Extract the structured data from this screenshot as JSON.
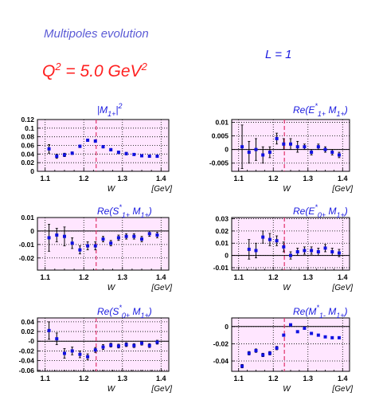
{
  "header": {
    "title": "Multipoles evolution",
    "q2_base": "Q",
    "q2_exp": "2",
    "q2_mid": " = 5.0 GeV",
    "q2_unit_exp": "2",
    "l_label": "L = 1"
  },
  "colors": {
    "title": "#5b5bd6",
    "q2": "#ff2020",
    "label": "#1a1ae0",
    "plot_bg": "#ffe6ff",
    "markers": "#1010e0",
    "dashed": "#e0306a"
  },
  "chart_data": [
    {
      "type": "scatter",
      "label": "|M_{1+}|^2",
      "xlabel": "W",
      "xunit": "[GeV]",
      "xlim": [
        1.08,
        1.42
      ],
      "ylim": [
        0,
        0.12
      ],
      "yticks": [
        "0",
        "0.02",
        "0.04",
        "0.06",
        "0.08",
        "0.1",
        "0.12"
      ],
      "yticks_val": [
        0,
        0.02,
        0.04,
        0.06,
        0.08,
        0.1,
        0.12
      ],
      "xticks": [
        "1.1",
        "1.2",
        "1.3",
        "1.4"
      ],
      "hline": null,
      "vline": 1.232,
      "x": [
        1.11,
        1.13,
        1.15,
        1.17,
        1.19,
        1.21,
        1.23,
        1.25,
        1.27,
        1.29,
        1.31,
        1.33,
        1.35,
        1.37,
        1.39
      ],
      "y": [
        0.052,
        0.035,
        0.038,
        0.042,
        0.058,
        0.072,
        0.07,
        0.057,
        0.05,
        0.044,
        0.041,
        0.039,
        0.036,
        0.035,
        0.035
      ],
      "err": [
        0.01,
        0.005,
        0.004,
        0.003,
        0.003,
        0.003,
        0.003,
        0.003,
        0.003,
        0.003,
        0.003,
        0.002,
        0.002,
        0.002,
        0.003
      ]
    },
    {
      "type": "scatter",
      "label": "Re(E^*_{1+} M_{1+})",
      "xlabel": "W",
      "xunit": "[GeV]",
      "xlim": [
        1.08,
        1.42
      ],
      "ylim": [
        -0.008,
        0.011
      ],
      "yticks": [
        "-0.005",
        "0",
        "0.005",
        "0.01"
      ],
      "yticks_val": [
        -0.005,
        0,
        0.005,
        0.01
      ],
      "xticks": [
        "1.1",
        "1.2",
        "1.3",
        "1.4"
      ],
      "hline": 0,
      "vline": 1.232,
      "x": [
        1.11,
        1.13,
        1.15,
        1.17,
        1.19,
        1.21,
        1.23,
        1.25,
        1.27,
        1.29,
        1.31,
        1.33,
        1.35,
        1.37,
        1.39
      ],
      "y": [
        0.001,
        -0.001,
        0,
        -0.002,
        -0.001,
        0.004,
        0.002,
        0.002,
        0.001,
        0.001,
        -0.001,
        0.001,
        0,
        -0.001,
        -0.002
      ],
      "err": [
        0.008,
        0.004,
        0.004,
        0.003,
        0.002,
        0.002,
        0.002,
        0.002,
        0.002,
        0.001,
        0.001,
        0.001,
        0.001,
        0.001,
        0.001
      ]
    },
    {
      "type": "scatter",
      "label": "Re(S^*_{1+} M_{1+})",
      "xlabel": "W",
      "xunit": "[GeV]",
      "xlim": [
        1.08,
        1.42
      ],
      "ylim": [
        -0.029,
        0.01
      ],
      "yticks": [
        "-0.02",
        "-0.01",
        "0",
        "0.01"
      ],
      "yticks_val": [
        -0.02,
        -0.01,
        0,
        0.01
      ],
      "xticks": [
        "1.1",
        "1.2",
        "1.3",
        "1.4"
      ],
      "hline": 0,
      "vline": 1.232,
      "x": [
        1.11,
        1.13,
        1.15,
        1.17,
        1.19,
        1.21,
        1.23,
        1.25,
        1.27,
        1.29,
        1.31,
        1.33,
        1.35,
        1.37,
        1.39
      ],
      "y": [
        -0.005,
        -0.003,
        -0.004,
        -0.009,
        -0.014,
        -0.011,
        -0.011,
        -0.006,
        -0.009,
        -0.005,
        -0.004,
        -0.004,
        -0.006,
        -0.002,
        -0.003
      ],
      "err": [
        0.01,
        0.005,
        0.007,
        0.004,
        0.003,
        0.003,
        0.003,
        0.002,
        0.002,
        0.002,
        0.002,
        0.002,
        0.002,
        0.002,
        0.002
      ]
    },
    {
      "type": "scatter",
      "label": "Re(E^*_{0+} M_{1+})",
      "xlabel": "W",
      "xunit": "[GeV]",
      "xlim": [
        1.08,
        1.42
      ],
      "ylim": [
        -0.012,
        0.031
      ],
      "yticks": [
        "-0.01",
        "0",
        "0.01",
        "0.02",
        "0.03"
      ],
      "yticks_val": [
        -0.01,
        0,
        0.01,
        0.02,
        0.03
      ],
      "xticks": [
        "1.1",
        "1.2",
        "1.3",
        "1.4"
      ],
      "hline": 0,
      "vline": 1.232,
      "x": [
        1.13,
        1.15,
        1.17,
        1.19,
        1.21,
        1.23,
        1.25,
        1.27,
        1.29,
        1.31,
        1.33,
        1.35,
        1.37,
        1.39
      ],
      "y": [
        0.005,
        0.004,
        0.015,
        0.013,
        0.012,
        0.007,
        0,
        0.003,
        0.004,
        0.004,
        0.003,
        0.006,
        0.003,
        0.002
      ],
      "err": [
        0.008,
        0.006,
        0.005,
        0.005,
        0.004,
        0.004,
        0.003,
        0.003,
        0.003,
        0.003,
        0.003,
        0.003,
        0.003,
        0.003
      ]
    },
    {
      "type": "scatter",
      "label": "Re(S^*_{0+} M_{1+})",
      "xlabel": "W",
      "xunit": "[GeV]",
      "xlim": [
        1.08,
        1.42
      ],
      "ylim": [
        -0.062,
        0.048
      ],
      "yticks": [
        "-0.06",
        "-0.04",
        "-0.02",
        "-0",
        "0.02",
        "0.04"
      ],
      "yticks_val": [
        -0.06,
        -0.04,
        -0.02,
        0,
        0.02,
        0.04
      ],
      "xticks": [
        "1.1",
        "1.2",
        "1.3",
        "1.4"
      ],
      "hline": 0,
      "vline": 1.232,
      "x": [
        1.11,
        1.13,
        1.15,
        1.17,
        1.19,
        1.21,
        1.23,
        1.25,
        1.27,
        1.29,
        1.31,
        1.33,
        1.35,
        1.37,
        1.39
      ],
      "y": [
        0.022,
        0.005,
        -0.025,
        -0.02,
        -0.027,
        -0.032,
        -0.018,
        -0.012,
        -0.008,
        -0.01,
        -0.007,
        -0.009,
        -0.004,
        -0.009,
        -0.002
      ],
      "err": [
        0.018,
        0.012,
        0.01,
        0.008,
        0.007,
        0.006,
        0.005,
        0.005,
        0.004,
        0.004,
        0.004,
        0.004,
        0.004,
        0.004,
        0.004
      ]
    },
    {
      "type": "scatter",
      "label": "Re(M^*_{1-} M_{1+})",
      "xlabel": "W",
      "xunit": "[GeV]",
      "xlim": [
        1.08,
        1.42
      ],
      "ylim": [
        -0.052,
        0.01
      ],
      "yticks": [
        "-0.04",
        "-0.02",
        "0"
      ],
      "yticks_val": [
        -0.04,
        -0.02,
        0
      ],
      "xticks": [
        "1.1",
        "1.2",
        "1.3",
        "1.4"
      ],
      "hline": 0,
      "vline": 1.232,
      "x": [
        1.11,
        1.13,
        1.15,
        1.17,
        1.19,
        1.21,
        1.23,
        1.25,
        1.27,
        1.29,
        1.31,
        1.33,
        1.35,
        1.37,
        1.39
      ],
      "y": [
        -0.046,
        -0.031,
        -0.028,
        -0.033,
        -0.031,
        -0.025,
        -0.01,
        0.002,
        -0.006,
        -0.002,
        -0.008,
        -0.01,
        -0.012,
        -0.013,
        -0.013
      ],
      "err": [
        0.002,
        0.002,
        0.002,
        0.002,
        0.002,
        0.002,
        0.001,
        0.001,
        0.001,
        0.001,
        0.001,
        0.001,
        0.001,
        0.001,
        0.001
      ]
    }
  ]
}
